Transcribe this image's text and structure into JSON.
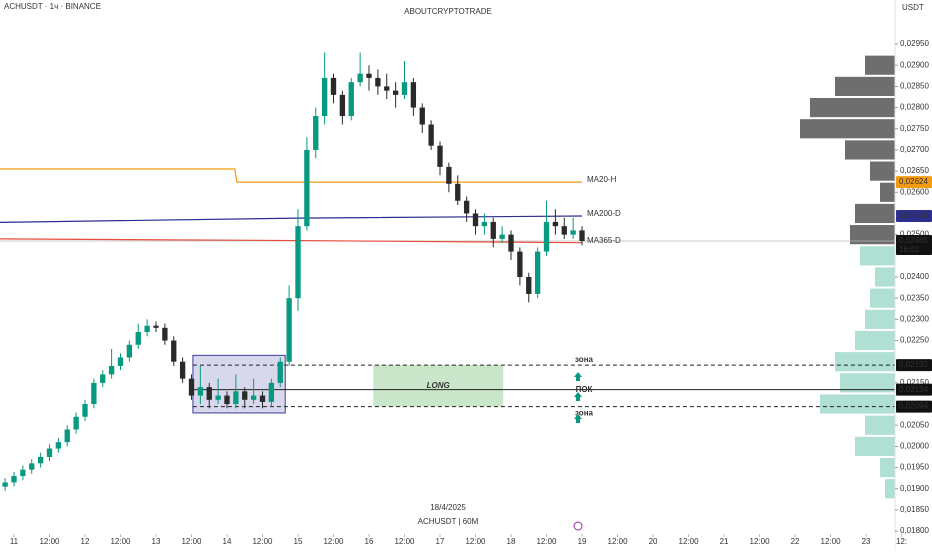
{
  "chart_data": {
    "type": "candlestick",
    "symbol": "ACHUSDT · 1ч · BINANCE",
    "title": "ABOUTCRYPTOTRADE",
    "y_axis_label": "USDT",
    "date_label": "18/4/2025",
    "interval_label": "ACHUSDT | 60M",
    "up_color": "#089981",
    "down_color": "#2a2a2a",
    "xlim": [
      10.803,
      23.408
    ],
    "ylim": [
      0.01779,
      0.03054
    ],
    "xticks": [
      {
        "value": 11,
        "label": "11"
      },
      {
        "value": 11.5,
        "label": "12:00"
      },
      {
        "value": 12,
        "label": "12"
      },
      {
        "value": 12.5,
        "label": "12:00"
      },
      {
        "value": 13,
        "label": "13"
      },
      {
        "value": 13.5,
        "label": "12:00"
      },
      {
        "value": 14,
        "label": "14"
      },
      {
        "value": 14.5,
        "label": "12:00"
      },
      {
        "value": 15,
        "label": "15"
      },
      {
        "value": 15.5,
        "label": "12:00"
      },
      {
        "value": 16,
        "label": "16"
      },
      {
        "value": 16.5,
        "label": "12:00"
      },
      {
        "value": 17,
        "label": "17"
      },
      {
        "value": 17.5,
        "label": "12:00"
      },
      {
        "value": 18,
        "label": "18"
      },
      {
        "value": 18.5,
        "label": "12:00"
      },
      {
        "value": 19,
        "label": "19"
      },
      {
        "value": 19.5,
        "label": "12:00"
      },
      {
        "value": 20,
        "label": "20"
      },
      {
        "value": 20.5,
        "label": "12:00"
      },
      {
        "value": 21,
        "label": "21"
      },
      {
        "value": 21.5,
        "label": "12:00"
      },
      {
        "value": 22,
        "label": "22"
      },
      {
        "value": 22.5,
        "label": "12:00"
      },
      {
        "value": 23,
        "label": "23"
      },
      {
        "value": 23.5,
        "label": "12:"
      }
    ],
    "yticks": [
      {
        "value": 0.0295,
        "label": "0,02950"
      },
      {
        "value": 0.029,
        "label": "0,02900"
      },
      {
        "value": 0.0285,
        "label": "0,02850"
      },
      {
        "value": 0.028,
        "label": "0,02800"
      },
      {
        "value": 0.0275,
        "label": "0,02750"
      },
      {
        "value": 0.027,
        "label": "0,02700"
      },
      {
        "value": 0.0265,
        "label": "0,02650"
      },
      {
        "value": 0.026,
        "label": "0,02600"
      },
      {
        "value": 0.025,
        "label": "0,02500"
      },
      {
        "value": 0.024,
        "label": "0,02400"
      },
      {
        "value": 0.0235,
        "label": "0,02350"
      },
      {
        "value": 0.023,
        "label": "0,02300"
      },
      {
        "value": 0.0225,
        "label": "0,02250"
      },
      {
        "value": 0.0215,
        "label": "0,02150"
      },
      {
        "value": 0.0205,
        "label": "0,02050"
      },
      {
        "value": 0.02,
        "label": "0,02000"
      },
      {
        "value": 0.0195,
        "label": "0,01950"
      },
      {
        "value": 0.019,
        "label": "0,01900"
      },
      {
        "value": 0.0185,
        "label": "0,01850"
      },
      {
        "value": 0.018,
        "label": "0,01800"
      }
    ],
    "x": [
      10.875,
      11,
      11.125,
      11.25,
      11.375,
      11.5,
      11.625,
      11.75,
      11.875,
      12,
      12.125,
      12.25,
      12.375,
      12.5,
      12.625,
      12.75,
      12.875,
      13,
      13.125,
      13.25,
      13.375,
      13.5,
      13.625,
      13.75,
      13.875,
      14,
      14.125,
      14.25,
      14.375,
      14.5,
      14.625,
      14.75,
      14.875,
      15,
      15.125,
      15.25,
      15.375,
      15.5,
      15.625,
      15.75,
      15.875,
      16,
      16.125,
      16.25,
      16.375,
      16.5,
      16.625,
      16.75,
      16.875,
      17,
      17.125,
      17.25,
      17.375,
      17.5,
      17.625,
      17.75,
      17.875,
      18,
      18.125,
      18.25,
      18.375,
      18.5,
      18.625,
      18.75,
      18.875,
      19
    ],
    "open": [
      0.01905,
      0.01915,
      0.0193,
      0.01945,
      0.0196,
      0.01975,
      0.01995,
      0.0201,
      0.0204,
      0.0207,
      0.021,
      0.0215,
      0.0217,
      0.0219,
      0.0221,
      0.0224,
      0.0227,
      0.02285,
      0.0228,
      0.0225,
      0.022,
      0.0216,
      0.0212,
      0.0214,
      0.0211,
      0.0212,
      0.021,
      0.0213,
      0.0211,
      0.0212,
      0.02105,
      0.0215,
      0.022,
      0.0235,
      0.0252,
      0.027,
      0.0278,
      0.0287,
      0.0283,
      0.0278,
      0.0286,
      0.0288,
      0.0287,
      0.0285,
      0.0284,
      0.0283,
      0.0286,
      0.028,
      0.0276,
      0.0271,
      0.0266,
      0.0262,
      0.0258,
      0.0255,
      0.0252,
      0.0253,
      0.0249,
      0.025,
      0.0246,
      0.024,
      0.0236,
      0.0246,
      0.0253,
      0.0252,
      0.025,
      0.0251
    ],
    "high": [
      0.01925,
      0.0194,
      0.01955,
      0.0197,
      0.01985,
      0.02005,
      0.0202,
      0.0205,
      0.0208,
      0.0211,
      0.0216,
      0.0218,
      0.0223,
      0.0222,
      0.0225,
      0.0229,
      0.023,
      0.02295,
      0.0229,
      0.0226,
      0.0221,
      0.0217,
      0.0219,
      0.0215,
      0.0216,
      0.0213,
      0.0217,
      0.0214,
      0.0216,
      0.0213,
      0.0216,
      0.0221,
      0.0238,
      0.0256,
      0.0273,
      0.028,
      0.0293,
      0.0288,
      0.0284,
      0.0287,
      0.0293,
      0.029,
      0.0289,
      0.0288,
      0.0286,
      0.0291,
      0.0287,
      0.0281,
      0.0277,
      0.0272,
      0.0267,
      0.0264,
      0.0259,
      0.0256,
      0.0255,
      0.0254,
      0.0252,
      0.0251,
      0.0247,
      0.0241,
      0.0247,
      0.0258,
      0.0256,
      0.0254,
      0.0254,
      0.0252
    ],
    "low": [
      0.01895,
      0.01905,
      0.0192,
      0.01935,
      0.0195,
      0.01965,
      0.01985,
      0.02,
      0.0203,
      0.0206,
      0.0209,
      0.0214,
      0.0216,
      0.0218,
      0.022,
      0.0223,
      0.0226,
      0.0227,
      0.0224,
      0.0219,
      0.0215,
      0.0211,
      0.021,
      0.0209,
      0.021,
      0.0209,
      0.0209,
      0.0209,
      0.021,
      0.0209,
      0.02095,
      0.0214,
      0.0219,
      0.0232,
      0.0251,
      0.0268,
      0.0276,
      0.0281,
      0.0276,
      0.0277,
      0.0285,
      0.0284,
      0.0283,
      0.0282,
      0.028,
      0.0282,
      0.0278,
      0.0274,
      0.027,
      0.0264,
      0.026,
      0.0257,
      0.0253,
      0.025,
      0.025,
      0.0247,
      0.0248,
      0.0244,
      0.0238,
      0.0234,
      0.0235,
      0.0245,
      0.025,
      0.0249,
      0.0249,
      0.02475
    ],
    "close": [
      0.01915,
      0.0193,
      0.01945,
      0.0196,
      0.01975,
      0.01995,
      0.0201,
      0.0204,
      0.0207,
      0.021,
      0.0215,
      0.0217,
      0.0219,
      0.0221,
      0.0224,
      0.0227,
      0.02285,
      0.0228,
      0.0225,
      0.022,
      0.0216,
      0.0212,
      0.0214,
      0.0211,
      0.0212,
      0.021,
      0.0213,
      0.0211,
      0.0212,
      0.02105,
      0.0215,
      0.022,
      0.0235,
      0.0252,
      0.027,
      0.0278,
      0.0287,
      0.0283,
      0.0278,
      0.0286,
      0.0288,
      0.0287,
      0.0285,
      0.0284,
      0.0283,
      0.0286,
      0.028,
      0.0276,
      0.0271,
      0.0266,
      0.0262,
      0.0258,
      0.0255,
      0.0252,
      0.0253,
      0.0249,
      0.025,
      0.0246,
      0.024,
      0.0236,
      0.0246,
      0.0253,
      0.0252,
      0.025,
      0.0251,
      0.02485
    ],
    "current_price": {
      "value": 0.02485,
      "label": "0,02485",
      "countdown": "16:02"
    },
    "series": [
      {
        "name": "MA20-H",
        "color": "#f39c12",
        "x": [
          10.803,
          14.11,
          14.14,
          19.0
        ],
        "values": [
          0.02655,
          0.02655,
          0.02624,
          0.02624
        ],
        "badge": "0,02624"
      },
      {
        "name": "MA200-D",
        "color": "#2e2e8f",
        "x": [
          10.803,
          15.0,
          19.0
        ],
        "values": [
          0.02529,
          0.02539,
          0.02544
        ],
        "badge": "0,02544"
      },
      {
        "name": "MA365-D",
        "color": "#e74c3c",
        "x": [
          10.803,
          15.0,
          19.0
        ],
        "values": [
          0.0249,
          0.02486,
          0.02481
        ],
        "badge": "0,02481"
      }
    ],
    "levels": [
      {
        "value": 0.02192,
        "label": "0,02192",
        "style": "dashed",
        "note": "зона"
      },
      {
        "value": 0.02134,
        "label": "0,02134",
        "style": "solid",
        "note": "ПОК"
      },
      {
        "value": 0.02094,
        "label": "0,02094",
        "style": "dashed",
        "note": "зона"
      }
    ],
    "boxes": [
      {
        "x": [
          13.52,
          14.82
        ],
        "y": [
          0.02079,
          0.02215
        ],
        "color": "#3b3b9e"
      },
      {
        "x": [
          16.06,
          17.89
        ],
        "y": [
          0.02094,
          0.02192
        ],
        "color": "#a5d6a7",
        "label": "LONG"
      }
    ],
    "volume_profile": {
      "prices": [
        0.019,
        0.0195,
        0.02,
        0.0205,
        0.021,
        0.0215,
        0.022,
        0.0225,
        0.023,
        0.0235,
        0.024,
        0.0245,
        0.025,
        0.0255,
        0.026,
        0.0265,
        0.027,
        0.0275,
        0.028,
        0.0285,
        0.029
      ],
      "values": [
        10,
        15,
        40,
        30,
        75,
        55,
        60,
        40,
        30,
        25,
        20,
        35,
        45,
        40,
        15,
        25,
        50,
        95,
        85,
        60,
        30
      ]
    }
  }
}
